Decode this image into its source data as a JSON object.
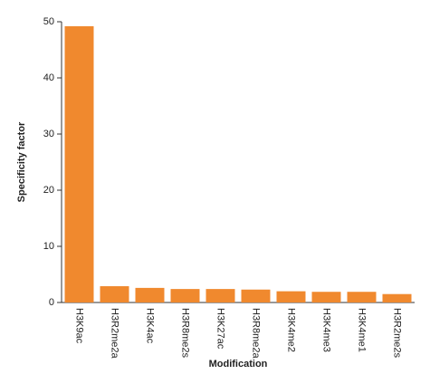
{
  "chart_data": {
    "type": "bar",
    "x_label": "Modification",
    "y_label": "Specificity factor",
    "categories": [
      "H3K9ac",
      "H3R2me2a",
      "H3K4ac",
      "H3R8me2s",
      "H3K27ac",
      "H3R8me2a",
      "H3K4me2",
      "H3K4me3",
      "H3K4me1",
      "H3R2me2s"
    ],
    "values": [
      49.2,
      2.9,
      2.6,
      2.4,
      2.4,
      2.3,
      2.0,
      1.9,
      1.9,
      1.5
    ],
    "color": "#f0892e",
    "ylim": [
      0,
      50
    ],
    "yticks": [
      0,
      10,
      20,
      30,
      40,
      50
    ],
    "grid": false
  }
}
